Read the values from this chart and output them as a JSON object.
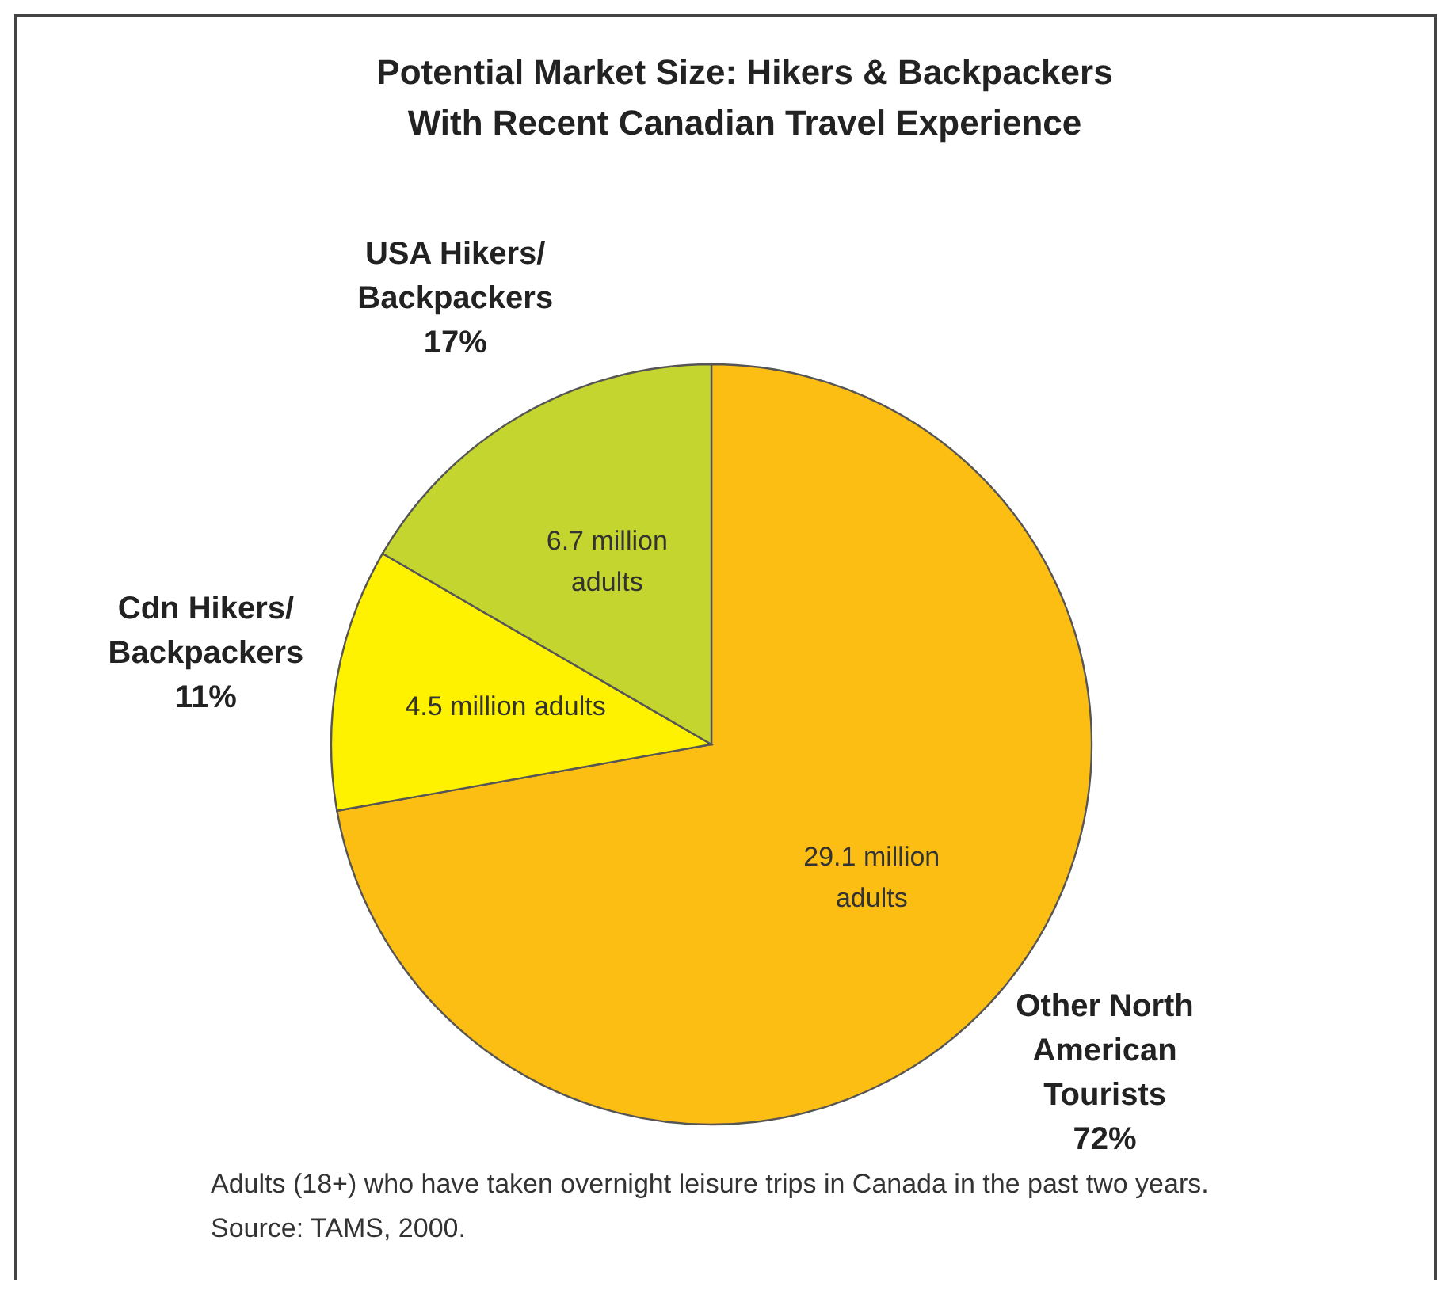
{
  "chart_data": {
    "type": "pie",
    "title": "Potential Market Size: Hikers & Backpackers\nWith Recent Canadian Travel Experience",
    "categories": [
      "Other North\nAmerican\nTourists\n72%",
      "Cdn Hikers/\nBackpackers\n11%",
      "USA Hikers/\nBackpackers\n17%"
    ],
    "values": [
      29.1,
      4.5,
      6.7
    ],
    "colors": [
      "#fdbe14",
      "#fff200",
      "#c5d530"
    ],
    "value_labels": [
      "29.1 million\nadults",
      "4.5 million adults",
      "6.7 million\nadults"
    ],
    "annotations": [
      "Adults (18+) who have taken overnight leisure trips in Canada in the past two years.",
      "Source: TAMS, 2000."
    ]
  }
}
